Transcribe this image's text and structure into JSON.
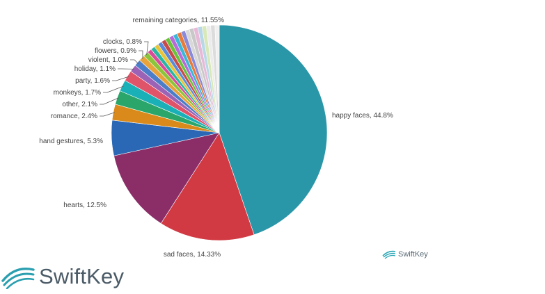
{
  "chart_data": {
    "type": "pie",
    "start_angle_deg": 0,
    "direction": "clockwise",
    "slices": [
      {
        "label": "happy faces, 44.8%",
        "value": 44.8,
        "color": "#2a97a9"
      },
      {
        "label": "sad faces, 14.33%",
        "value": 14.33,
        "color": "#d23a43"
      },
      {
        "label": "hearts, 12.5%",
        "value": 12.5,
        "color": "#8b2e68"
      },
      {
        "label": "hand gestures, 5.3%",
        "value": 5.3,
        "color": "#2a68b5"
      },
      {
        "label": "romance, 2.4%",
        "value": 2.4,
        "color": "#d98a1a"
      },
      {
        "label": "other, 2.1%",
        "value": 2.1,
        "color": "#2aa66a"
      },
      {
        "label": "monkeys, 1.7%",
        "value": 1.7,
        "color": "#1ab0b8"
      },
      {
        "label": "party, 1.6%",
        "value": 1.6,
        "color": "#e0546a"
      },
      {
        "label": "holiday, 1.1%",
        "value": 1.1,
        "color": "#9b62b5"
      },
      {
        "label": "violent, 1.0%",
        "value": 1.0,
        "color": "#4b7dc8"
      },
      {
        "label": "flowers, 0.9%",
        "value": 0.9,
        "color": "#e8a43a"
      },
      {
        "label": "clocks, 0.8%",
        "value": 0.8,
        "color": "#8cc43a"
      },
      {
        "label": "remaining categories, 11.55%",
        "value": 11.55,
        "color": "#e6e6e6",
        "stripes": [
          "#d94a9a",
          "#2ab5a5",
          "#e8c43a",
          "#5a8ad8",
          "#c84a4a",
          "#6ac43a",
          "#b86ad8",
          "#3ab8d8",
          "#e87a3a",
          "#8a8ad8",
          "#d8d8d8",
          "#c8c8c8",
          "#e8b8d8",
          "#b8d8e8",
          "#d8e8b8",
          "#ececec",
          "#dcdcdc",
          "#f0f0f0"
        ]
      }
    ]
  },
  "brand": {
    "name": "SwiftKey",
    "icon": "swiftkey-swoosh-icon"
  }
}
